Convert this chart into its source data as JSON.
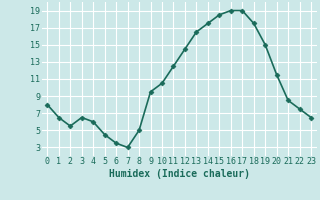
{
  "x": [
    0,
    1,
    2,
    3,
    4,
    5,
    6,
    7,
    8,
    9,
    10,
    11,
    12,
    13,
    14,
    15,
    16,
    17,
    18,
    19,
    20,
    21,
    22,
    23
  ],
  "y": [
    8,
    6.5,
    5.5,
    6.5,
    6,
    4.5,
    3.5,
    3,
    5,
    9.5,
    10.5,
    12.5,
    14.5,
    16.5,
    17.5,
    18.5,
    19,
    19,
    17.5,
    15,
    11.5,
    8.5,
    7.5,
    6.5
  ],
  "line_color": "#1a6b5a",
  "marker": "D",
  "marker_size": 2.5,
  "bg_color": "#cce8e8",
  "grid_color": "#ffffff",
  "xlabel": "Humidex (Indice chaleur)",
  "xlabel_fontsize": 7,
  "xlim": [
    -0.5,
    23.5
  ],
  "ylim": [
    2,
    20
  ],
  "yticks": [
    3,
    5,
    7,
    9,
    11,
    13,
    15,
    17,
    19
  ],
  "xticks": [
    0,
    1,
    2,
    3,
    4,
    5,
    6,
    7,
    8,
    9,
    10,
    11,
    12,
    13,
    14,
    15,
    16,
    17,
    18,
    19,
    20,
    21,
    22,
    23
  ],
  "tick_fontsize": 6,
  "axis_color": "#1a6b5a",
  "line_width": 1.2
}
